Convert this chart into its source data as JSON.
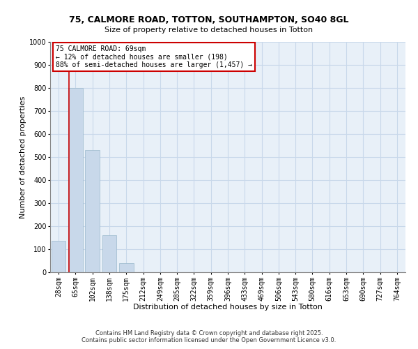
{
  "title1": "75, CALMORE ROAD, TOTTON, SOUTHAMPTON, SO40 8GL",
  "title2": "Size of property relative to detached houses in Totton",
  "xlabel": "Distribution of detached houses by size in Totton",
  "ylabel": "Number of detached properties",
  "footer1": "Contains HM Land Registry data © Crown copyright and database right 2025.",
  "footer2": "Contains public sector information licensed under the Open Government Licence v3.0.",
  "bar_color": "#c8d8ea",
  "bar_edge_color": "#9ab8cc",
  "grid_color": "#c8d8ea",
  "background_color": "#e8f0f8",
  "annotation_line1": "75 CALMORE ROAD: 69sqm",
  "annotation_line2": "← 12% of detached houses are smaller (198)",
  "annotation_line3": "88% of semi-detached houses are larger (1,457) →",
  "categories": [
    "28sqm",
    "65sqm",
    "102sqm",
    "138sqm",
    "175sqm",
    "212sqm",
    "249sqm",
    "285sqm",
    "322sqm",
    "359sqm",
    "396sqm",
    "433sqm",
    "469sqm",
    "506sqm",
    "543sqm",
    "580sqm",
    "616sqm",
    "653sqm",
    "690sqm",
    "727sqm",
    "764sqm"
  ],
  "bar_heights": [
    135,
    800,
    530,
    160,
    40,
    0,
    0,
    0,
    0,
    0,
    0,
    0,
    0,
    0,
    0,
    0,
    0,
    0,
    0,
    0,
    0
  ],
  "ylim": [
    0,
    1000
  ],
  "yticks": [
    0,
    100,
    200,
    300,
    400,
    500,
    600,
    700,
    800,
    900,
    1000
  ],
  "red_line_index": 0.6,
  "red_color": "#cc0000",
  "annotation_box_facecolor": "#ffffff",
  "annotation_box_edgecolor": "#cc0000",
  "title1_fontsize": 9,
  "title2_fontsize": 8,
  "xlabel_fontsize": 8,
  "ylabel_fontsize": 8,
  "tick_fontsize": 7,
  "footer_fontsize": 6
}
